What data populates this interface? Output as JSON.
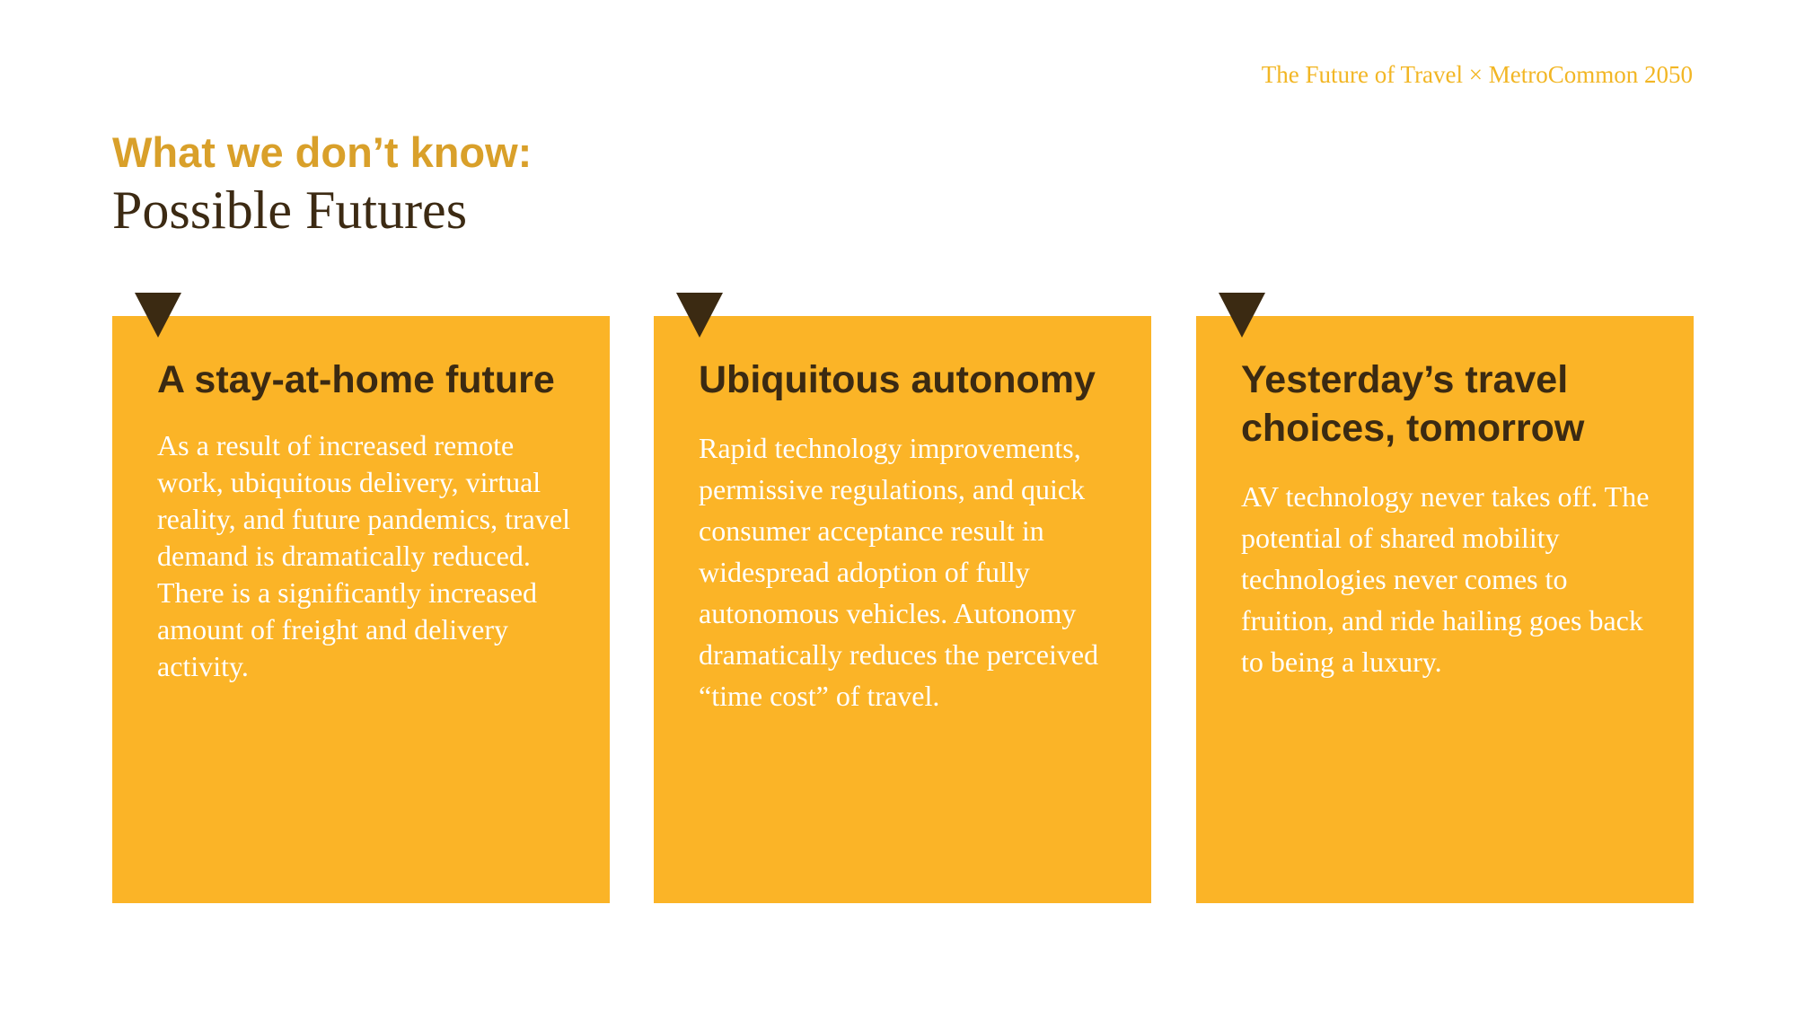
{
  "header": {
    "credit": "The Future of Travel × MetroCommon 2050"
  },
  "heading": {
    "kicker": "What we don’t know:",
    "title": "Possible Futures"
  },
  "cards": [
    {
      "title": "A stay-at-home future",
      "body": "As a result of increased remote work, ubiquitous delivery, virtual reality, and future pandemics, travel demand is dramatically reduced. There is a significantly increased amount of freight and delivery activity."
    },
    {
      "title": "Ubiquitous autonomy",
      "body": "Rapid technology improvements, permissive regulations, and quick consumer acceptance result in widespread adoption of fully autonomous vehicles. Autonomy dramatically reduces the perceived “time cost” of travel."
    },
    {
      "title": "Yesterday’s travel choices, tomorrow",
      "body": "AV technology never takes off. The potential of shared mobility technologies never comes to fruition, and ride hailing goes back to being a luxury."
    }
  ],
  "colors": {
    "accent": "#fbb427",
    "kicker": "#d9a02a",
    "credit": "#f2b624",
    "dark": "#3b2a12"
  }
}
